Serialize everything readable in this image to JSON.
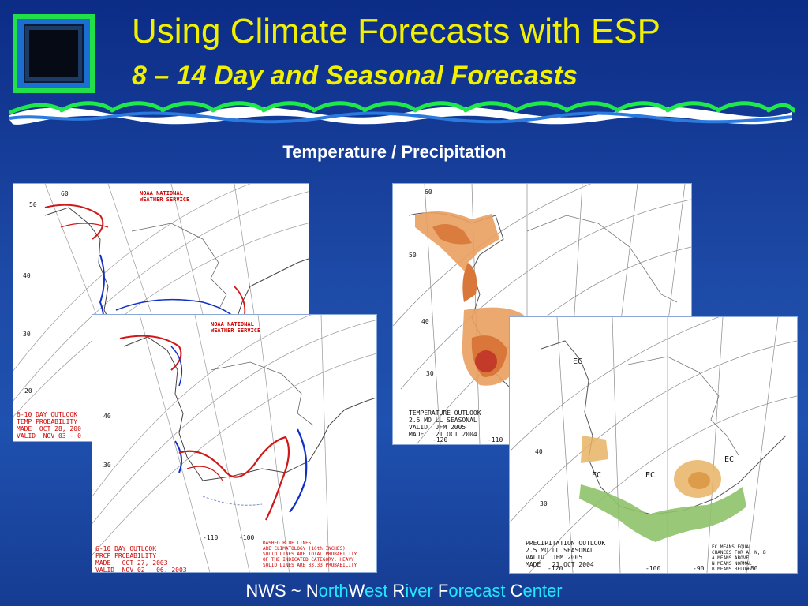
{
  "slide": {
    "title": "Using Climate Forecasts with ESP",
    "subtitle": "8 – 14 Day and Seasonal Forecasts",
    "heading": "Temperature / Precipitation"
  },
  "maps": {
    "temp_6_10": {
      "agency": "NOAA NATIONAL\nWEATHER SERVICE",
      "caption": "6-10 DAY OUTLOOK\nTEMP PROBABILITY\nMADE  OCT 28, 200\nVALID  NOV 03 - 0",
      "lat_labels": [
        "50",
        "40",
        "30",
        "20"
      ],
      "long_labels": [
        "60"
      ]
    },
    "prcp_6_10": {
      "agency": "NOAA NATIONAL\nWEATHER SERVICE",
      "caption": "6-10 DAY OUTLOOK\nPRCP PROBABILITY\nMADE   OCT 27, 2003\nVALID  NOV 02 - 06, 2003",
      "note": "DASHED BLUE LINES\nARE CLIMATOLOGY (10th INCHES)\nSOLID LINES ARE TOTAL PROBABILITY\nOF THE INDICATED CATEGORY. HEAVY\nSOLID LINES ARE 33.33 PROBABILITY",
      "lat_labels": [
        "40",
        "30"
      ],
      "long_labels": [
        "-110",
        "-100"
      ]
    },
    "temp_seasonal": {
      "caption": "TEMPERATURE OUTLOOK\n2.5 MO LL SEASONAL\nVALID  JFM 2005\nMADE   21 OCT 2004",
      "lat_labels": [
        "60",
        "50",
        "40",
        "30"
      ],
      "long_labels": [
        "-120",
        "-110"
      ]
    },
    "prcp_seasonal": {
      "caption": "PRECIPITATION OUTLOOK\n2.5 MO LL SEASONAL\nVALID  JFM 2005\nMADE   21 OCT 2004",
      "legend": "EC MEANS EQUAL\nCHANCES FOR A, N, B\nA MEANS ABOVE\nN MEANS NORMAL\nB MEANS BELOW",
      "lat_labels": [
        "40",
        "30"
      ],
      "long_labels": [
        "-120",
        "-100",
        "-90",
        "-80"
      ],
      "ec_label": "EC"
    }
  },
  "footer": {
    "p1": "NWS ~ ",
    "n": "N",
    "orth": "orth",
    "w": "W",
    "est": "est",
    "r": " R",
    "iver": "iver",
    "f": " F",
    "orecast": "orecast",
    "c": " C",
    "enter": "enter"
  },
  "colors": {
    "background": "#1d4aa6",
    "title": "#f0f000",
    "wave_green": "#1ee84a",
    "wave_blue": "#2a7ae0",
    "accent_cyan": "#22e8ff"
  }
}
